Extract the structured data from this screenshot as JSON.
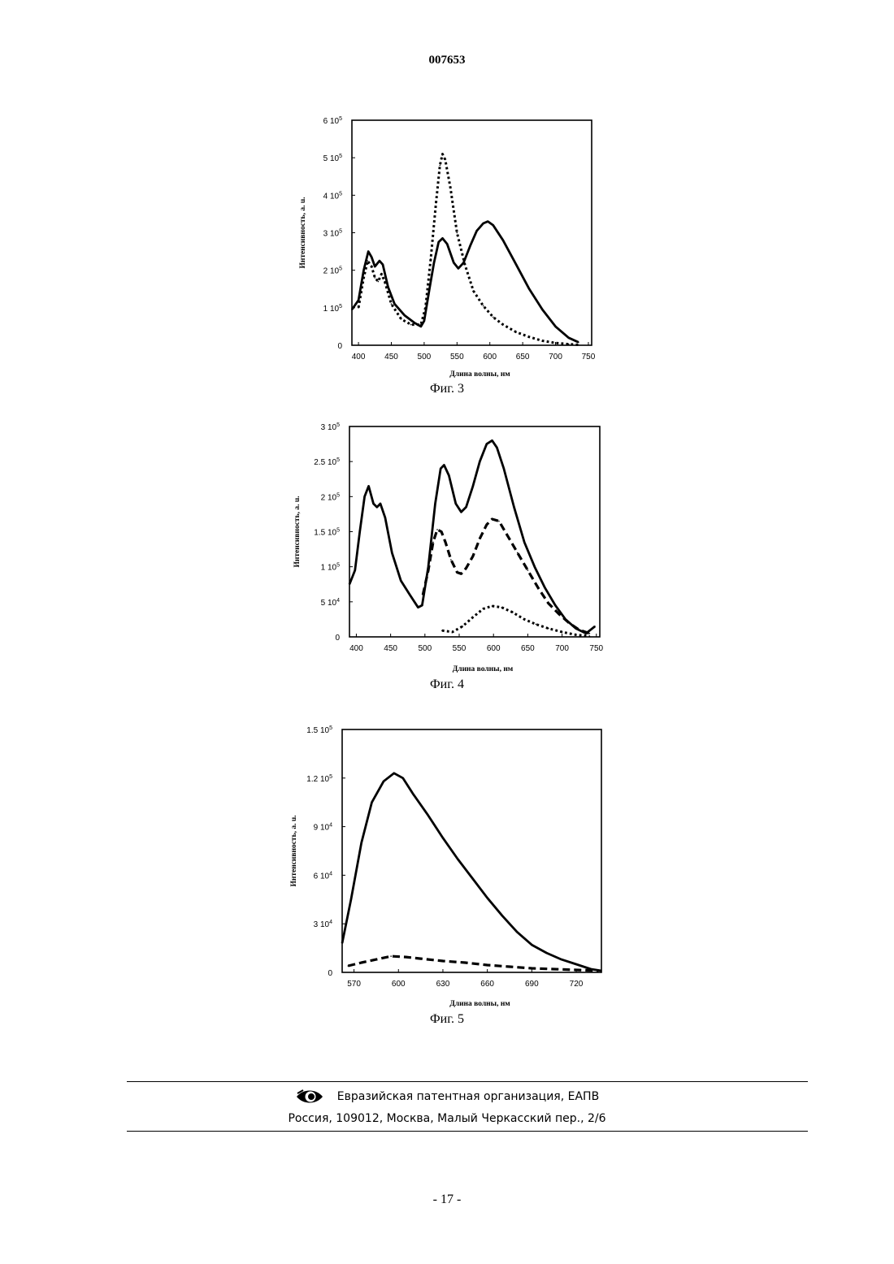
{
  "document": {
    "number": "007653",
    "page_number": "- 17 -"
  },
  "footer": {
    "organization": "Евразийская патентная организация, ЕАПВ",
    "address": "Россия, 109012, Москва, Малый Черкасский пер., 2/6",
    "logo_icon": "eapo-eye-logo-icon"
  },
  "figures": [
    {
      "caption": "Фиг. 3",
      "xlabel": "Длина волны, нм",
      "ylabel": "Интенсивность, а. u."
    },
    {
      "caption": "Фиг. 4",
      "xlabel": "Длина волны, нм",
      "ylabel": "Интенсивность, а. u."
    },
    {
      "caption": "Фиг. 5",
      "xlabel": "Длина волны, нм",
      "ylabel": "Интенсивность, а. u."
    }
  ],
  "chart_data": [
    {
      "type": "line",
      "title": "",
      "xlabel": "Длина волны, нм",
      "ylabel": "Интенсивность, а. u.",
      "xlim": [
        390,
        755
      ],
      "ylim": [
        0,
        600000
      ],
      "x_ticks": [
        400,
        450,
        500,
        550,
        600,
        650,
        700,
        750
      ],
      "y_ticks": [
        {
          "value": 0,
          "mant": "0",
          "exp": ""
        },
        {
          "value": 100000,
          "mant": "1 10",
          "exp": "5"
        },
        {
          "value": 200000,
          "mant": "2 10",
          "exp": "5"
        },
        {
          "value": 300000,
          "mant": "3 10",
          "exp": "5"
        },
        {
          "value": 400000,
          "mant": "4 10",
          "exp": "5"
        },
        {
          "value": 500000,
          "mant": "5 10",
          "exp": "5"
        },
        {
          "value": 600000,
          "mant": "6 10",
          "exp": "5"
        }
      ],
      "series": [
        {
          "style": "solid",
          "points": [
            [
              390,
              95000
            ],
            [
              400,
              120000
            ],
            [
              408,
              200000
            ],
            [
              415,
              250000
            ],
            [
              420,
              235000
            ],
            [
              425,
              210000
            ],
            [
              432,
              225000
            ],
            [
              437,
              215000
            ],
            [
              445,
              155000
            ],
            [
              455,
              110000
            ],
            [
              470,
              80000
            ],
            [
              485,
              60000
            ],
            [
              495,
              50000
            ],
            [
              500,
              65000
            ],
            [
              508,
              150000
            ],
            [
              515,
              220000
            ],
            [
              522,
              275000
            ],
            [
              528,
              285000
            ],
            [
              535,
              270000
            ],
            [
              545,
              220000
            ],
            [
              552,
              205000
            ],
            [
              560,
              220000
            ],
            [
              570,
              265000
            ],
            [
              580,
              305000
            ],
            [
              590,
              325000
            ],
            [
              597,
              330000
            ],
            [
              605,
              320000
            ],
            [
              620,
              280000
            ],
            [
              640,
              215000
            ],
            [
              660,
              150000
            ],
            [
              680,
              95000
            ],
            [
              700,
              50000
            ],
            [
              720,
              20000
            ],
            [
              735,
              8000
            ]
          ]
        },
        {
          "style": "dotted",
          "points": [
            [
              400,
              100000
            ],
            [
              408,
              180000
            ],
            [
              414,
              225000
            ],
            [
              420,
              210000
            ],
            [
              425,
              180000
            ],
            [
              430,
              170000
            ],
            [
              435,
              190000
            ],
            [
              440,
              170000
            ],
            [
              450,
              110000
            ],
            [
              465,
              70000
            ],
            [
              480,
              55000
            ],
            [
              495,
              55000
            ],
            [
              502,
              100000
            ],
            [
              510,
              230000
            ],
            [
              518,
              380000
            ],
            [
              524,
              480000
            ],
            [
              528,
              510000
            ],
            [
              532,
              495000
            ],
            [
              540,
              420000
            ],
            [
              550,
              300000
            ],
            [
              562,
              215000
            ],
            [
              575,
              145000
            ],
            [
              590,
              105000
            ],
            [
              605,
              75000
            ],
            [
              620,
              55000
            ],
            [
              640,
              35000
            ],
            [
              660,
              22000
            ],
            [
              680,
              12000
            ],
            [
              700,
              6000
            ],
            [
              720,
              3000
            ],
            [
              735,
              1000
            ]
          ]
        }
      ]
    },
    {
      "type": "line",
      "title": "",
      "xlabel": "Длина волны, нм",
      "ylabel": "Интенсивность, а. u.",
      "xlim": [
        390,
        755
      ],
      "ylim": [
        0,
        300000
      ],
      "x_ticks": [
        400,
        450,
        500,
        550,
        600,
        650,
        700,
        750
      ],
      "y_ticks": [
        {
          "value": 0,
          "mant": "0",
          "exp": ""
        },
        {
          "value": 50000,
          "mant": "5 10",
          "exp": "4"
        },
        {
          "value": 100000,
          "mant": "1 10",
          "exp": "5"
        },
        {
          "value": 150000,
          "mant": "1.5 10",
          "exp": "5"
        },
        {
          "value": 200000,
          "mant": "2 10",
          "exp": "5"
        },
        {
          "value": 250000,
          "mant": "2.5 10",
          "exp": "5"
        },
        {
          "value": 300000,
          "mant": "3 10",
          "exp": "5"
        }
      ],
      "series": [
        {
          "style": "solid",
          "points": [
            [
              390,
              75000
            ],
            [
              398,
              95000
            ],
            [
              405,
              150000
            ],
            [
              412,
              200000
            ],
            [
              418,
              215000
            ],
            [
              425,
              190000
            ],
            [
              430,
              185000
            ],
            [
              435,
              190000
            ],
            [
              442,
              170000
            ],
            [
              452,
              120000
            ],
            [
              465,
              80000
            ],
            [
              478,
              60000
            ],
            [
              490,
              42000
            ],
            [
              496,
              45000
            ],
            [
              505,
              100000
            ],
            [
              515,
              190000
            ],
            [
              523,
              240000
            ],
            [
              528,
              245000
            ],
            [
              535,
              230000
            ],
            [
              545,
              190000
            ],
            [
              553,
              178000
            ],
            [
              560,
              185000
            ],
            [
              570,
              215000
            ],
            [
              580,
              250000
            ],
            [
              590,
              275000
            ],
            [
              598,
              280000
            ],
            [
              605,
              270000
            ],
            [
              615,
              240000
            ],
            [
              630,
              185000
            ],
            [
              645,
              135000
            ],
            [
              660,
              100000
            ],
            [
              675,
              70000
            ],
            [
              690,
              45000
            ],
            [
              705,
              25000
            ],
            [
              720,
              12000
            ],
            [
              735,
              5000
            ],
            [
              748,
              15000
            ]
          ]
        },
        {
          "style": "dashed",
          "points": [
            [
              497,
              60000
            ],
            [
              505,
              95000
            ],
            [
              512,
              135000
            ],
            [
              518,
              153000
            ],
            [
              524,
              150000
            ],
            [
              530,
              135000
            ],
            [
              538,
              110000
            ],
            [
              547,
              92000
            ],
            [
              553,
              90000
            ],
            [
              560,
              98000
            ],
            [
              570,
              115000
            ],
            [
              580,
              140000
            ],
            [
              590,
              160000
            ],
            [
              598,
              168000
            ],
            [
              608,
              165000
            ],
            [
              620,
              145000
            ],
            [
              635,
              120000
            ],
            [
              650,
              95000
            ],
            [
              665,
              70000
            ],
            [
              680,
              48000
            ],
            [
              695,
              33000
            ],
            [
              710,
              20000
            ],
            [
              725,
              10000
            ],
            [
              740,
              5000
            ]
          ]
        },
        {
          "style": "dotted",
          "points": [
            [
              525,
              9000
            ],
            [
              540,
              7000
            ],
            [
              555,
              15000
            ],
            [
              570,
              28000
            ],
            [
              585,
              40000
            ],
            [
              598,
              44000
            ],
            [
              612,
              42000
            ],
            [
              628,
              35000
            ],
            [
              645,
              25000
            ],
            [
              662,
              18000
            ],
            [
              680,
              12000
            ],
            [
              700,
              7000
            ],
            [
              720,
              3000
            ],
            [
              740,
              1000
            ]
          ]
        }
      ]
    },
    {
      "type": "line",
      "title": "",
      "xlabel": "Длина волны, нм",
      "ylabel": "Интенсивность, а. u.",
      "xlim": [
        562,
        737
      ],
      "ylim": [
        0,
        150000
      ],
      "x_ticks": [
        570,
        600,
        630,
        660,
        690,
        720
      ],
      "y_ticks": [
        {
          "value": 0,
          "mant": "0",
          "exp": ""
        },
        {
          "value": 30000,
          "mant": "3 10",
          "exp": "4"
        },
        {
          "value": 60000,
          "mant": "6 10",
          "exp": "4"
        },
        {
          "value": 90000,
          "mant": "9 10",
          "exp": "4"
        },
        {
          "value": 120000,
          "mant": "1.2 10",
          "exp": "5"
        },
        {
          "value": 150000,
          "mant": "1.5 10",
          "exp": "5"
        }
      ],
      "series": [
        {
          "style": "solid",
          "points": [
            [
              562,
              18000
            ],
            [
              568,
              45000
            ],
            [
              575,
              80000
            ],
            [
              582,
              105000
            ],
            [
              590,
              118000
            ],
            [
              597,
              123000
            ],
            [
              603,
              120000
            ],
            [
              610,
              110000
            ],
            [
              620,
              97000
            ],
            [
              630,
              83000
            ],
            [
              640,
              70000
            ],
            [
              650,
              58000
            ],
            [
              660,
              46000
            ],
            [
              670,
              35000
            ],
            [
              680,
              25000
            ],
            [
              690,
              17000
            ],
            [
              700,
              12000
            ],
            [
              710,
              8000
            ],
            [
              720,
              5000
            ],
            [
              730,
              2000
            ],
            [
              737,
              1000
            ]
          ]
        },
        {
          "style": "dashed",
          "points": [
            [
              566,
              4000
            ],
            [
              575,
              6000
            ],
            [
              585,
              8000
            ],
            [
              595,
              10000
            ],
            [
              605,
              9500
            ],
            [
              615,
              8500
            ],
            [
              630,
              7000
            ],
            [
              645,
              6000
            ],
            [
              660,
              4500
            ],
            [
              675,
              3500
            ],
            [
              690,
              2500
            ],
            [
              705,
              2000
            ],
            [
              720,
              1500
            ],
            [
              735,
              1000
            ]
          ]
        }
      ]
    }
  ]
}
